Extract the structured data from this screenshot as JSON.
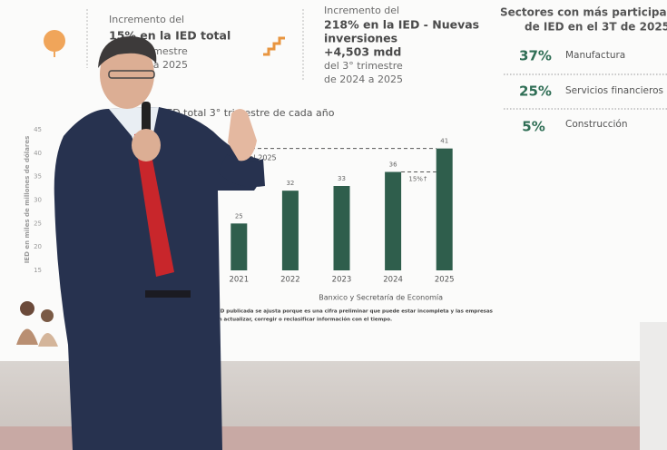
{
  "callouts": [
    {
      "lines": [
        "Incremento del",
        "15% en la IED total",
        "del 3° trimestre",
        "de 2024 a 2025"
      ]
    },
    {
      "lines": [
        "Incremento del",
        "218% en la IED - Nuevas",
        "inversiones",
        "+4,503 mdd",
        "del 3° trimestre",
        "de 2024 a 2025"
      ]
    }
  ],
  "sectors": {
    "title": [
      "Sectores con más participac",
      "de IED en el 3T de 2025"
    ],
    "rows": [
      {
        "share": "37%",
        "name": "Manufactura"
      },
      {
        "share": "25%",
        "name": "Servicios financieros"
      },
      {
        "share": "5%",
        "name": "Construcción"
      }
    ]
  },
  "chart_data": {
    "type": "bar",
    "title": "IED total 3° trimestre de cada año",
    "y_label": "IED en miles de millones de dólares",
    "annotation": "IED total del 2018 al 2025",
    "growth_label": "15%↑",
    "source": "Banxico y Secretaría de Economía",
    "footnote": [
      "IED publicada se ajusta porque es una cifra preliminar que puede estar incompleta y las empresas",
      "en actualizar, corregir o reclasificar información con el tiempo."
    ],
    "categories": [
      "2021",
      "2022",
      "2023",
      "2024",
      "2025"
    ],
    "values": [
      25,
      32,
      33,
      36,
      41
    ],
    "color": "#2f5e4c",
    "ylim": [
      15,
      45
    ],
    "yticks": [
      15,
      20,
      25,
      30,
      35,
      40,
      45
    ],
    "grid": false
  }
}
